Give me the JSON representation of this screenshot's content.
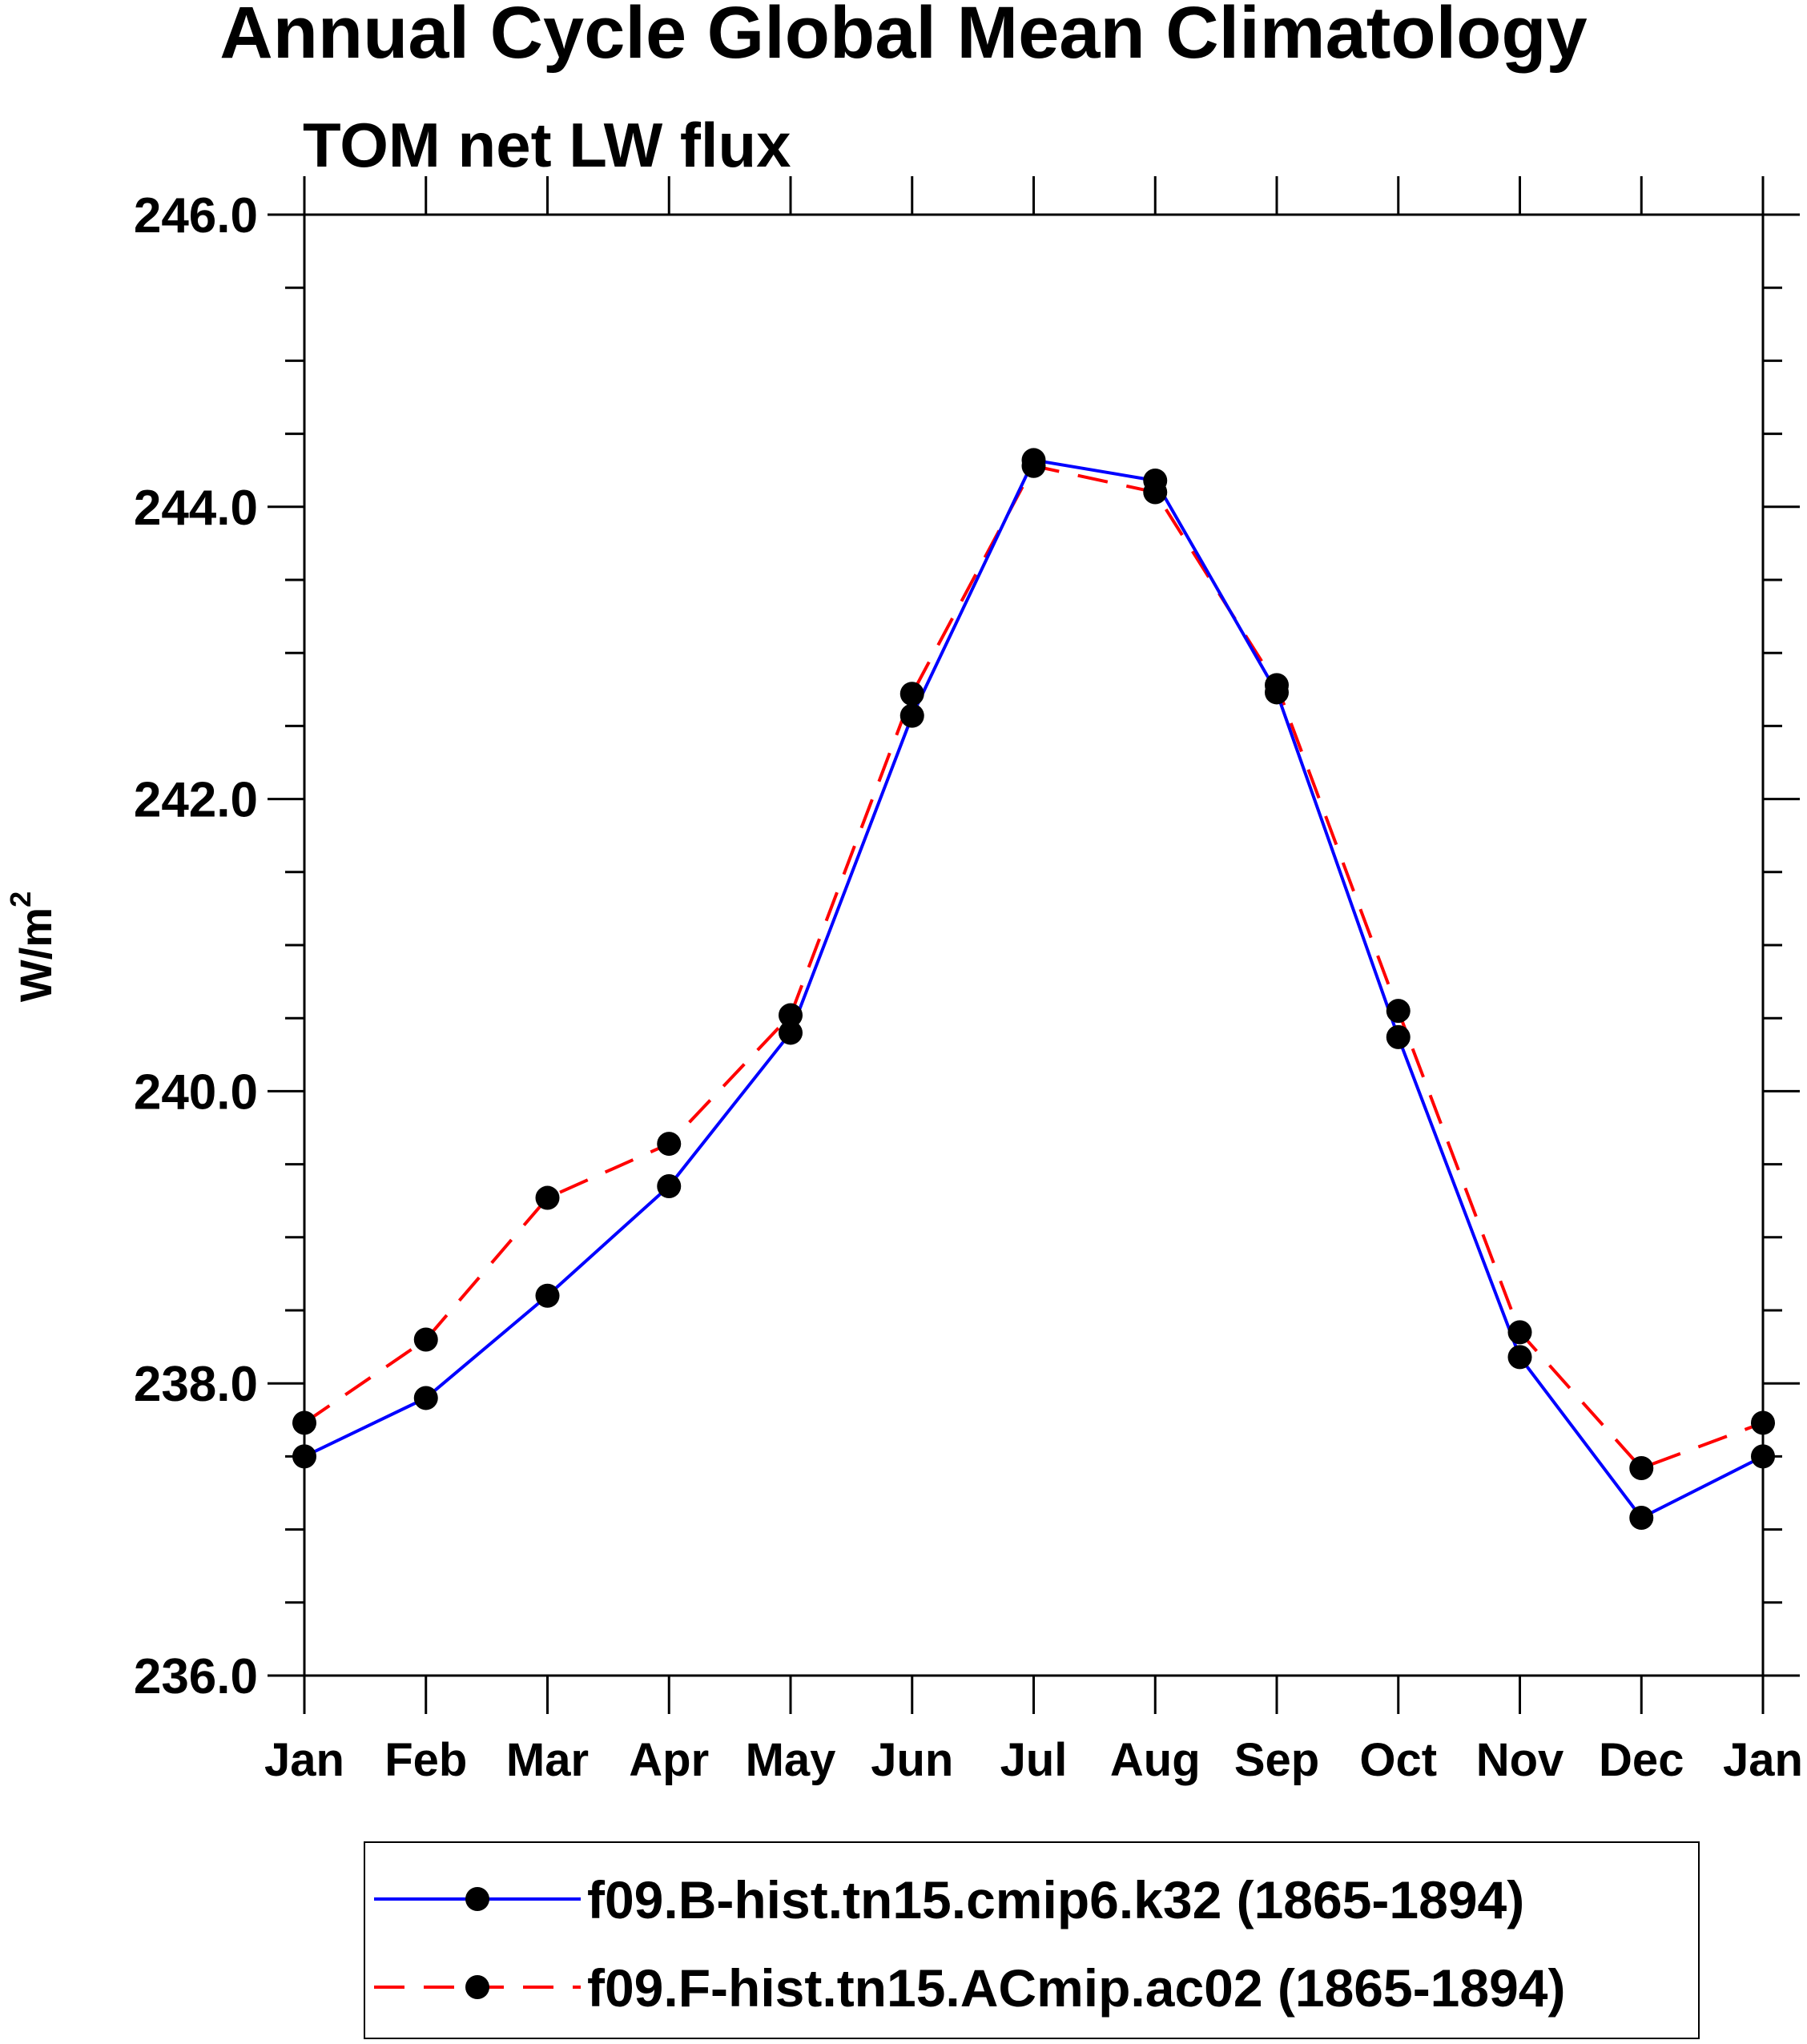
{
  "chart_data": {
    "type": "line",
    "title": "Annual Cycle Global Mean Climatology",
    "subtitle": "TOM net LW flux",
    "ylabel_base": "W/m",
    "ylabel_sup": "2",
    "xlabel": "",
    "categories": [
      "Jan",
      "Feb",
      "Mar",
      "Apr",
      "May",
      "Jun",
      "Jul",
      "Aug",
      "Sep",
      "Oct",
      "Nov",
      "Dec",
      "Jan"
    ],
    "ylim": [
      236.0,
      246.0
    ],
    "yticks": [
      236.0,
      238.0,
      240.0,
      242.0,
      244.0,
      246.0
    ],
    "ytick_labels": [
      "236.0",
      "238.0",
      "240.0",
      "242.0",
      "244.0",
      "246.0"
    ],
    "y_minor_step": 0.5,
    "legend_position": "bottom",
    "series": [
      {
        "name": "f09.B-hist.tn15.cmip6.k32 (1865-1894)",
        "color": "#0000ff",
        "dash": "solid",
        "marker_color": "#000000",
        "values": [
          237.5,
          237.9,
          238.6,
          239.35,
          240.4,
          242.57,
          244.32,
          244.18,
          242.73,
          240.37,
          238.18,
          237.08,
          237.5
        ]
      },
      {
        "name": "f09.F-hist.tn15.ACmip.ac02 (1865-1894)",
        "color": "#ff0000",
        "dash": "dashed",
        "marker_color": "#000000",
        "values": [
          237.73,
          238.3,
          239.27,
          239.64,
          240.52,
          242.72,
          244.28,
          244.1,
          242.78,
          240.55,
          238.35,
          237.42,
          237.73
        ]
      }
    ]
  }
}
